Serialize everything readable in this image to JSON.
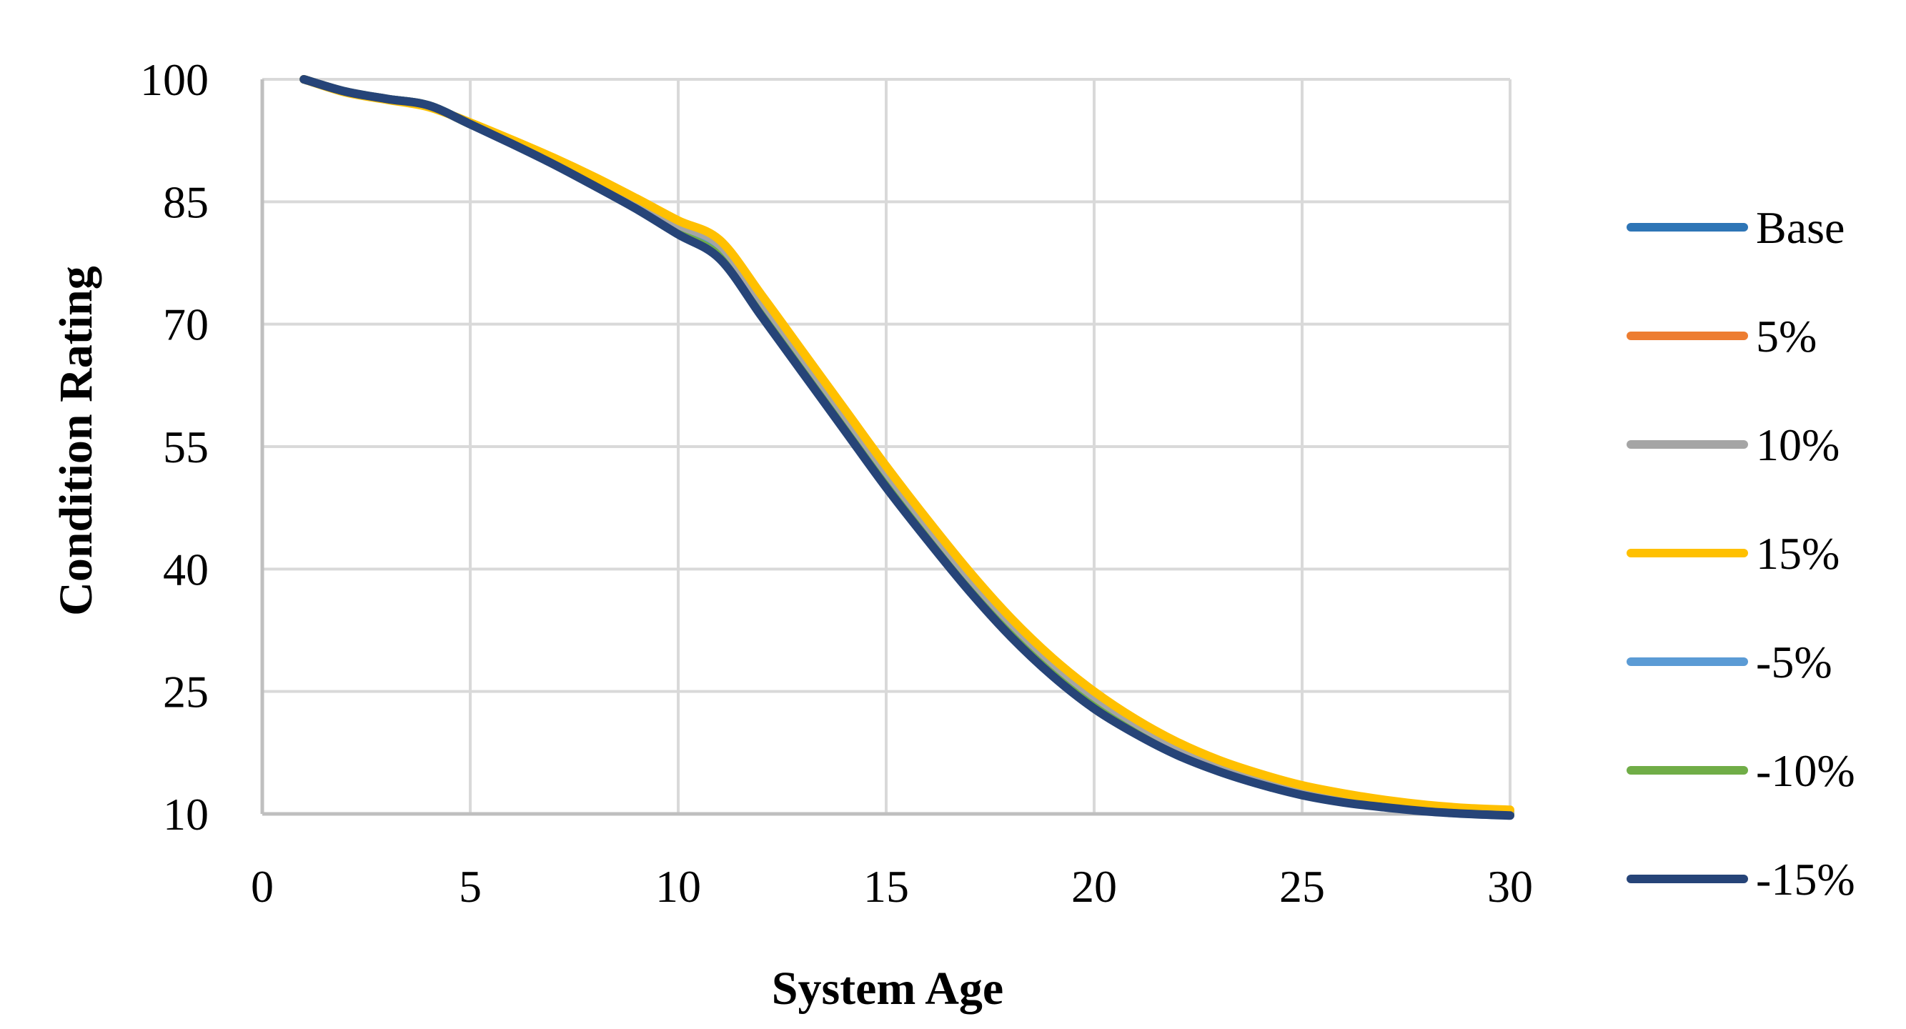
{
  "chart_data": {
    "type": "line",
    "title": "",
    "xlabel": "System Age",
    "ylabel": "Condition Rating",
    "xlim": [
      0,
      30
    ],
    "ylim": [
      10,
      100
    ],
    "x_ticks": [
      0,
      5,
      10,
      15,
      20,
      25,
      30
    ],
    "y_ticks": [
      10,
      25,
      40,
      55,
      70,
      85,
      100
    ],
    "grid": true,
    "legend_position": "right",
    "x": [
      1,
      2,
      3,
      4,
      5,
      6,
      7,
      8,
      9,
      10,
      11,
      12,
      13,
      14,
      15,
      16,
      17,
      18,
      19,
      20,
      21,
      22,
      23,
      24,
      25,
      26,
      27,
      28,
      29,
      30
    ],
    "series": [
      {
        "name": "Base",
        "color": "#2E75B6",
        "values": [
          100,
          98.5,
          97.6,
          96.8,
          94.5,
          92.2,
          89.8,
          87.2,
          84.4,
          81.4,
          78.5,
          71.5,
          64.5,
          57.5,
          50.5,
          44.0,
          37.8,
          32.2,
          27.4,
          23.4,
          20.2,
          17.5,
          15.5,
          13.9,
          12.6,
          11.7,
          11.0,
          10.5,
          10.2,
          10.0
        ]
      },
      {
        "name": "5%",
        "color": "#ED7D31",
        "values": [
          100,
          98.5,
          97.6,
          96.8,
          94.5,
          92.3,
          90.0,
          87.4,
          84.7,
          81.8,
          79.1,
          72.2,
          65.2,
          58.2,
          51.2,
          44.6,
          38.4,
          32.8,
          27.9,
          23.9,
          20.6,
          17.9,
          15.8,
          14.2,
          12.9,
          11.9,
          11.2,
          10.7,
          10.3,
          10.1
        ]
      },
      {
        "name": "10%",
        "color": "#A5A5A5",
        "values": [
          100,
          98.5,
          97.6,
          96.7,
          94.6,
          92.4,
          90.2,
          87.7,
          85.0,
          82.2,
          79.7,
          72.9,
          65.9,
          58.9,
          51.9,
          45.3,
          39.0,
          33.4,
          28.5,
          24.4,
          21.1,
          18.3,
          16.2,
          14.5,
          13.2,
          12.2,
          11.4,
          10.9,
          10.5,
          10.3
        ]
      },
      {
        "name": "15%",
        "color": "#FFC000",
        "values": [
          100,
          98.4,
          97.5,
          96.6,
          94.7,
          92.6,
          90.4,
          88.0,
          85.4,
          82.7,
          80.3,
          73.6,
          66.6,
          59.6,
          52.6,
          46.0,
          39.7,
          34.0,
          29.1,
          25.0,
          21.6,
          18.8,
          16.6,
          14.9,
          13.5,
          12.5,
          11.7,
          11.1,
          10.7,
          10.5
        ]
      },
      {
        "name": "-5%",
        "color": "#5B9BD5",
        "values": [
          100,
          98.5,
          97.6,
          96.8,
          94.5,
          92.2,
          89.8,
          87.2,
          84.4,
          81.4,
          78.5,
          71.5,
          64.5,
          57.5,
          50.5,
          44.0,
          37.8,
          32.2,
          27.4,
          23.4,
          20.2,
          17.5,
          15.5,
          13.9,
          12.6,
          11.7,
          11.0,
          10.5,
          10.2,
          10.0
        ]
      },
      {
        "name": "-10%",
        "color": "#70AD47",
        "values": [
          100,
          98.5,
          97.6,
          96.8,
          94.5,
          92.2,
          89.7,
          87.1,
          84.3,
          81.2,
          78.3,
          71.3,
          64.3,
          57.3,
          50.3,
          43.8,
          37.6,
          32.0,
          27.2,
          23.2,
          20.0,
          17.4,
          15.4,
          13.8,
          12.5,
          11.6,
          10.9,
          10.4,
          10.1,
          10.0
        ]
      },
      {
        "name": "-15%",
        "color": "#264478",
        "values": [
          100,
          98.5,
          97.6,
          96.8,
          94.5,
          92.1,
          89.6,
          86.9,
          84.1,
          81.0,
          78.0,
          71.0,
          64.0,
          57.0,
          50.0,
          43.5,
          37.3,
          31.7,
          26.9,
          22.9,
          19.8,
          17.2,
          15.2,
          13.6,
          12.3,
          11.4,
          10.8,
          10.3,
          10.0,
          9.8
        ]
      }
    ]
  }
}
